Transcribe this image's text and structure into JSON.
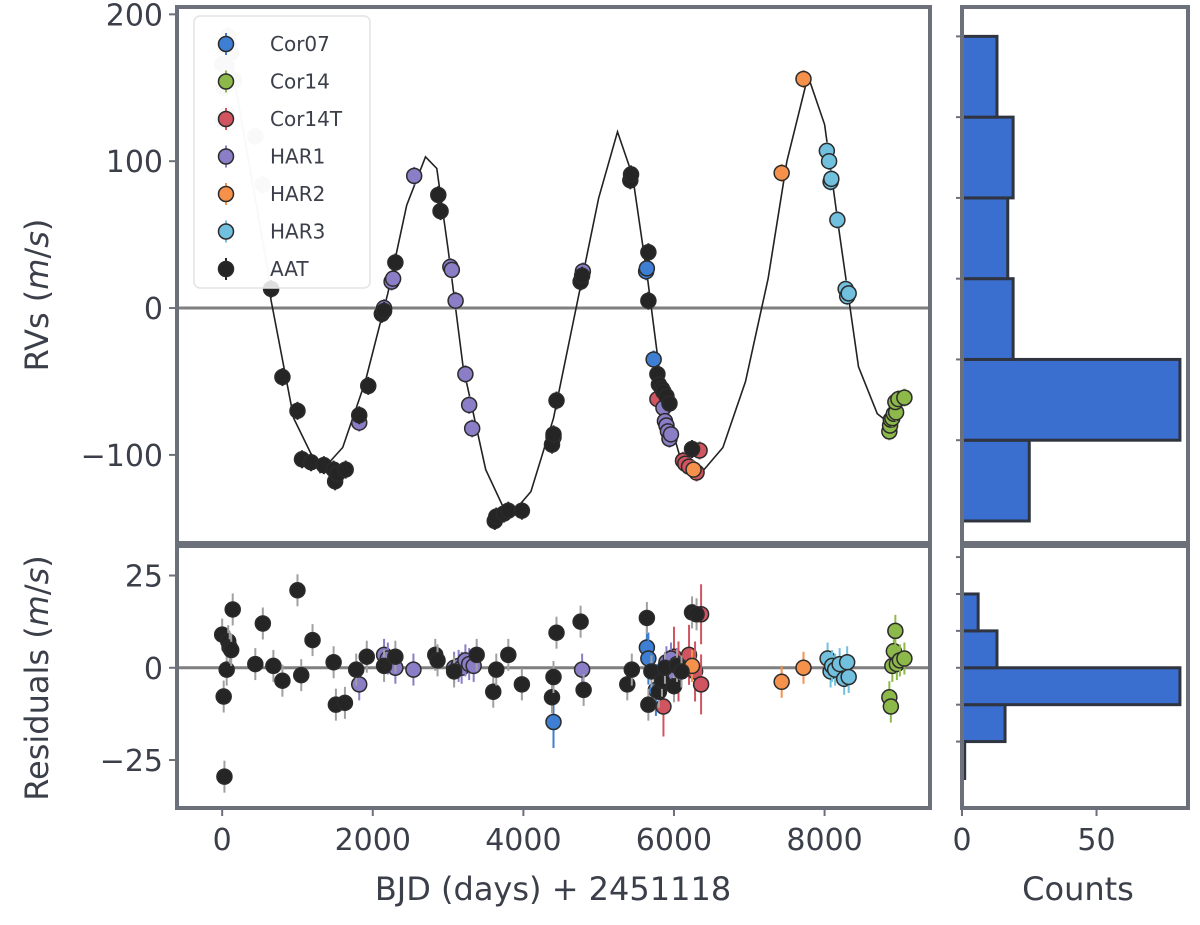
{
  "colors": {
    "Cor07": "#3f7fd3",
    "Cor14": "#8db84a",
    "Cor14T": "#d15561",
    "HAR1": "#8b7dc6",
    "HAR2": "#f5914b",
    "HAR3": "#70c0de",
    "AAT": "#252525",
    "early": "#d7d7d7",
    "hist": "#3a6fd0",
    "frame": "#6b707a"
  },
  "chart_data": [
    {
      "type": "scatter",
      "panel": "rv",
      "ylabel": "RVs (m/s)",
      "ylim": [
        -160,
        205
      ],
      "xlim": [
        -600,
        9400
      ],
      "yticks": [
        "200",
        "100",
        "0",
        "−100"
      ],
      "ytick_values": [
        200,
        100,
        0,
        -100
      ],
      "legend_position": "top-left",
      "series": [
        {
          "name": "Cor07",
          "points": [
            [
              4400,
              -88
            ],
            [
              5630,
              25
            ],
            [
              5640,
              27
            ],
            [
              5730,
              -35
            ]
          ]
        },
        {
          "name": "Cor14",
          "points": [
            [
              8860,
              -84
            ],
            [
              8870,
              -80
            ],
            [
              8880,
              -76
            ],
            [
              8900,
              -75
            ],
            [
              8920,
              -72
            ],
            [
              8950,
              -71
            ],
            [
              8940,
              -64
            ],
            [
              8980,
              -62
            ],
            [
              9060,
              -61
            ]
          ]
        },
        {
          "name": "Cor14T",
          "points": [
            [
              5780,
              -62
            ],
            [
              6120,
              -104
            ],
            [
              6150,
              -106
            ],
            [
              6200,
              -108
            ],
            [
              6300,
              -112
            ],
            [
              6340,
              -97
            ]
          ]
        },
        {
          "name": "HAR1",
          "points": [
            [
              1820,
              -78
            ],
            [
              2150,
              0
            ],
            [
              2250,
              18
            ],
            [
              2270,
              20
            ],
            [
              2550,
              90
            ],
            [
              3030,
              28
            ],
            [
              3050,
              26
            ],
            [
              3100,
              5
            ],
            [
              3230,
              -45
            ],
            [
              3280,
              -66
            ],
            [
              3320,
              -82
            ],
            [
              4790,
              25
            ],
            [
              5860,
              -68
            ],
            [
              5880,
              -77
            ],
            [
              5900,
              -80
            ],
            [
              5920,
              -84
            ],
            [
              5940,
              -89
            ],
            [
              5960,
              -86
            ]
          ]
        },
        {
          "name": "HAR2",
          "points": [
            [
              6260,
              -110
            ],
            [
              7430,
              92
            ],
            [
              7720,
              156
            ]
          ]
        },
        {
          "name": "HAR3",
          "points": [
            [
              8030,
              107
            ],
            [
              8060,
              100
            ],
            [
              8080,
              86
            ],
            [
              8090,
              88
            ],
            [
              8170,
              60
            ],
            [
              8280,
              13
            ],
            [
              8300,
              8
            ],
            [
              8320,
              10
            ]
          ]
        },
        {
          "name": "AAT",
          "points": [
            [
              650,
              13
            ],
            [
              800,
              -47
            ],
            [
              1000,
              -70
            ],
            [
              1060,
              -103
            ],
            [
              1180,
              -105
            ],
            [
              1350,
              -107
            ],
            [
              1480,
              -110
            ],
            [
              1500,
              -118
            ],
            [
              1530,
              -113
            ],
            [
              1640,
              -110
            ],
            [
              1820,
              -73
            ],
            [
              1940,
              -53
            ],
            [
              2120,
              -4
            ],
            [
              2150,
              -2
            ],
            [
              2300,
              31
            ],
            [
              2870,
              77
            ],
            [
              2900,
              66
            ],
            [
              3620,
              -145
            ],
            [
              3640,
              -142
            ],
            [
              3740,
              -140
            ],
            [
              3800,
              -138
            ],
            [
              3980,
              -138
            ],
            [
              4380,
              -93
            ],
            [
              4400,
              -86
            ],
            [
              4440,
              -63
            ],
            [
              4760,
              18
            ],
            [
              4780,
              22
            ],
            [
              5420,
              87
            ],
            [
              5430,
              91
            ],
            [
              5660,
              38
            ],
            [
              5660,
              5
            ],
            [
              5780,
              -45
            ],
            [
              5800,
              -52
            ],
            [
              5840,
              -55
            ],
            [
              5860,
              -57
            ],
            [
              5900,
              -60
            ],
            [
              5940,
              -65
            ],
            [
              6240,
              -96
            ]
          ]
        },
        {
          "name": "",
          "role": "early",
          "points": [
            [
              0,
              166
            ],
            [
              40,
              178
            ],
            [
              80,
              185
            ],
            [
              100,
              178
            ],
            [
              120,
              174
            ],
            [
              60,
              164
            ],
            [
              20,
              150
            ],
            [
              10,
              128
            ],
            [
              60,
              132
            ],
            [
              160,
              155
            ],
            [
              440,
              117
            ],
            [
              540,
              84
            ]
          ]
        }
      ]
    },
    {
      "type": "scatter",
      "panel": "residuals",
      "ylabel": "Residuals (m/s)",
      "xlabel": "BJD (days) + 2451118",
      "ylim": [
        -38,
        33
      ],
      "xlim": [
        -600,
        9400
      ],
      "xticks": [
        "0",
        "2000",
        "4000",
        "6000",
        "8000"
      ],
      "xtick_values": [
        0,
        2000,
        4000,
        6000,
        8000
      ],
      "yticks": [
        "25",
        "0",
        "−25"
      ],
      "ytick_values": [
        25,
        0,
        -25
      ],
      "series": [
        {
          "name": "Cor07",
          "points": [
            [
              4400,
              -14.7
            ],
            [
              5640,
              5.5
            ],
            [
              5660,
              2.5
            ],
            [
              5760,
              -6
            ]
          ]
        },
        {
          "name": "Cor14",
          "points": [
            [
              8860,
              -8
            ],
            [
              8880,
              -10.5
            ],
            [
              8900,
              0.5
            ],
            [
              8920,
              4.5
            ],
            [
              8940,
              10
            ],
            [
              8960,
              1
            ],
            [
              9000,
              2
            ],
            [
              9060,
              2.5
            ]
          ]
        },
        {
          "name": "Cor14T",
          "points": [
            [
              5860,
              -10.5
            ],
            [
              6000,
              3
            ],
            [
              6060,
              -1
            ],
            [
              6200,
              3.5
            ],
            [
              6280,
              -1
            ],
            [
              6360,
              14.5
            ],
            [
              6360,
              -4.5
            ]
          ]
        },
        {
          "name": "HAR1",
          "points": [
            [
              1820,
              -4.5
            ],
            [
              2150,
              3.5
            ],
            [
              2200,
              2.5
            ],
            [
              2300,
              0
            ],
            [
              2540,
              -0.5
            ],
            [
              3080,
              0
            ],
            [
              3140,
              0.5
            ],
            [
              3180,
              0
            ],
            [
              3230,
              2
            ],
            [
              3280,
              1
            ],
            [
              3340,
              0.5
            ],
            [
              4780,
              -0.5
            ],
            [
              5900,
              1.5
            ],
            [
              5960,
              2.5
            ],
            [
              6020,
              -2
            ],
            [
              6040,
              1
            ]
          ]
        },
        {
          "name": "HAR2",
          "points": [
            [
              6240,
              0.5
            ],
            [
              7430,
              -3.8
            ],
            [
              7720,
              0
            ]
          ]
        },
        {
          "name": "HAR3",
          "points": [
            [
              8040,
              2.5
            ],
            [
              8080,
              -1
            ],
            [
              8100,
              0.5
            ],
            [
              8140,
              -0.5
            ],
            [
              8200,
              1
            ],
            [
              8260,
              -3
            ],
            [
              8300,
              1.5
            ],
            [
              8320,
              -2.5
            ]
          ]
        },
        {
          "name": "AAT",
          "points": [
            [
              0,
              9
            ],
            [
              20,
              -7.8
            ],
            [
              30,
              -29.5
            ],
            [
              60,
              -0.5
            ],
            [
              80,
              7.2
            ],
            [
              100,
              5.5
            ],
            [
              120,
              4.8
            ],
            [
              140,
              15.8
            ],
            [
              440,
              1
            ],
            [
              540,
              12
            ],
            [
              680,
              0.5
            ],
            [
              800,
              -3.5
            ],
            [
              1000,
              21
            ],
            [
              1050,
              -2
            ],
            [
              1200,
              7.5
            ],
            [
              1480,
              1.5
            ],
            [
              1510,
              -10
            ],
            [
              1630,
              -9.5
            ],
            [
              1780,
              -0.5
            ],
            [
              1920,
              3
            ],
            [
              2150,
              0.5
            ],
            [
              2300,
              3
            ],
            [
              2830,
              3.5
            ],
            [
              2860,
              2
            ],
            [
              3080,
              -1
            ],
            [
              3380,
              3.5
            ],
            [
              3600,
              -6.5
            ],
            [
              3640,
              -0.5
            ],
            [
              3800,
              3.5
            ],
            [
              3980,
              -4.5
            ],
            [
              4380,
              -8
            ],
            [
              4400,
              -2.5
            ],
            [
              4440,
              9.5
            ],
            [
              4760,
              12.5
            ],
            [
              4800,
              -6
            ],
            [
              5380,
              -4.5
            ],
            [
              5440,
              -0.5
            ],
            [
              5640,
              13.5
            ],
            [
              5660,
              -10
            ],
            [
              5700,
              -1
            ],
            [
              5800,
              -6.5
            ],
            [
              5840,
              -3.5
            ],
            [
              5880,
              0
            ],
            [
              6000,
              -5
            ],
            [
              6040,
              0.5
            ],
            [
              6100,
              -1
            ],
            [
              6240,
              15
            ],
            [
              6300,
              14.5
            ]
          ]
        }
      ]
    },
    {
      "type": "bar",
      "orientation": "horizontal",
      "panel": "rv-histogram",
      "title": "",
      "ylim": [
        -160,
        205
      ],
      "bins": [
        [
          -145,
          -90
        ],
        [
          -90,
          -35
        ],
        [
          -35,
          20
        ],
        [
          20,
          75
        ],
        [
          75,
          130
        ],
        [
          130,
          185
        ]
      ],
      "counts": [
        25,
        81,
        19,
        17,
        19,
        13
      ],
      "xlim": [
        0,
        84
      ]
    },
    {
      "type": "bar",
      "orientation": "horizontal",
      "panel": "residual-histogram",
      "xlabel": "Counts",
      "ylim": [
        -38,
        33
      ],
      "xlim": [
        0,
        84
      ],
      "xticks": [
        "0",
        "50"
      ],
      "xtick_values": [
        0,
        50
      ],
      "bins": [
        [
          -30,
          -20
        ],
        [
          -20,
          -10
        ],
        [
          -10,
          0
        ],
        [
          0,
          10
        ],
        [
          10,
          20
        ],
        [
          20,
          30
        ]
      ],
      "counts": [
        1,
        16,
        81,
        13,
        6,
        0
      ]
    }
  ],
  "model_curve": {
    "period": 2588,
    "points": [
      [
        620,
        13
      ],
      [
        950,
        -75
      ],
      [
        1300,
        -112
      ],
      [
        1600,
        -95
      ],
      [
        1900,
        -50
      ],
      [
        2200,
        10
      ],
      [
        2450,
        70
      ],
      [
        2700,
        103
      ],
      [
        2850,
        95
      ],
      [
        3000,
        40
      ],
      [
        3200,
        -40
      ],
      [
        3500,
        -110
      ],
      [
        3800,
        -143
      ],
      [
        4100,
        -125
      ],
      [
        4400,
        -75
      ],
      [
        4700,
        0
      ],
      [
        5000,
        75
      ],
      [
        5250,
        120
      ],
      [
        5450,
        90
      ],
      [
        5650,
        20
      ],
      [
        5850,
        -60
      ],
      [
        6100,
        -105
      ],
      [
        6350,
        -113
      ],
      [
        6650,
        -95
      ],
      [
        6950,
        -50
      ],
      [
        7250,
        20
      ],
      [
        7500,
        100
      ],
      [
        7780,
        158
      ],
      [
        8000,
        125
      ],
      [
        8200,
        50
      ],
      [
        8450,
        -40
      ],
      [
        8700,
        -72
      ],
      [
        8850,
        -78
      ],
      [
        9000,
        -70
      ]
    ]
  }
}
